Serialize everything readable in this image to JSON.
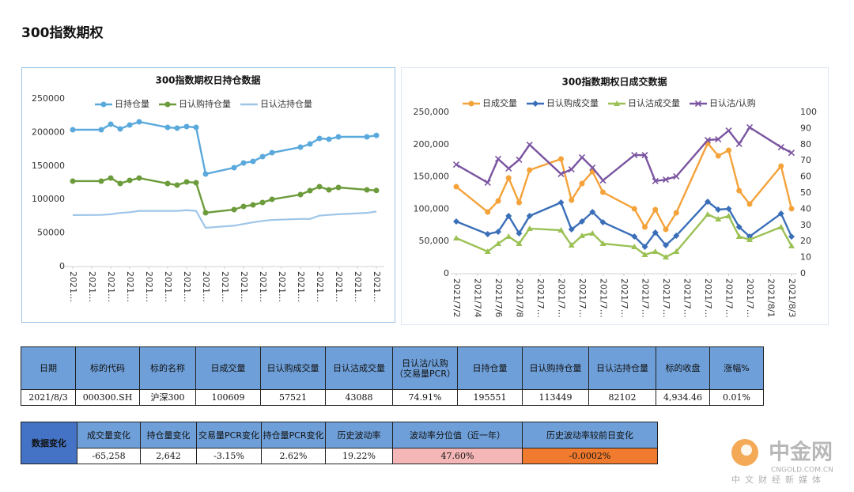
{
  "page_title": "300指数期权",
  "chart_data": [
    {
      "type": "line",
      "title": "300指数期权日持仓数据",
      "x": [
        "2021/7/2",
        "2021/7/5",
        "2021/7/6",
        "2021/7/7",
        "2021/7/8",
        "2021/7/9",
        "2021/7/12",
        "2021/7/13",
        "2021/7/14",
        "2021/7/15",
        "2021/7/16",
        "2021/7/19",
        "2021/7/20",
        "2021/7/21",
        "2021/7/22",
        "2021/7/23",
        "2021/7/26",
        "2021/7/27",
        "2021/7/28",
        "2021/7/29",
        "2021/7/30",
        "2021/8/2",
        "2021/8/3"
      ],
      "xlim": [
        "2021/7/2",
        "2021/8/3"
      ],
      "xticks": [
        {
          "value": "2021/7/2",
          "label": "2021…"
        },
        {
          "value": "2021/7/4",
          "label": "2021…"
        },
        {
          "value": "2021/7/6",
          "label": "2021…"
        },
        {
          "value": "2021/7/8",
          "label": "2021…"
        },
        {
          "value": "2021/7/10",
          "label": "2021…"
        },
        {
          "value": "2021/7/12",
          "label": "2021…"
        },
        {
          "value": "2021/7/14",
          "label": "2021…"
        },
        {
          "value": "2021/7/16",
          "label": "2021…"
        },
        {
          "value": "2021/7/18",
          "label": "2021…"
        },
        {
          "value": "2021/7/20",
          "label": "2021…"
        },
        {
          "value": "2021/7/22",
          "label": "2021…"
        },
        {
          "value": "2021/7/24",
          "label": "2021…"
        },
        {
          "value": "2021/7/26",
          "label": "2021…"
        },
        {
          "value": "2021/7/28",
          "label": "2021…"
        },
        {
          "value": "2021/7/30",
          "label": "2021…"
        },
        {
          "value": "2021/8/1",
          "label": "2021…"
        },
        {
          "value": "2021/8/3",
          "label": "2021…"
        }
      ],
      "ylim": [
        0,
        250000
      ],
      "yticks": [
        0,
        50000,
        100000,
        150000,
        200000,
        250000
      ],
      "series": [
        {
          "name": "日持仓量",
          "color": "#5aa9dc",
          "marker": "circle",
          "values": [
            204000,
            204000,
            212300,
            205200,
            211100,
            215800,
            207500,
            206400,
            208700,
            207500,
            138000,
            147400,
            154500,
            156800,
            163900,
            169800,
            178000,
            182800,
            191000,
            189900,
            193400,
            193400,
            195551
          ]
        },
        {
          "name": "日认购持仓量",
          "color": "#6b9b3a",
          "marker": "circle",
          "values": [
            127400,
            127400,
            132000,
            123800,
            128500,
            132000,
            123800,
            121500,
            126200,
            125000,
            80200,
            84900,
            89600,
            92000,
            95500,
            100200,
            107300,
            113200,
            119100,
            114400,
            117900,
            114400,
            113449
          ]
        },
        {
          "name": "日认沽持仓量",
          "color": "#9ec5e8",
          "marker": "none",
          "values": [
            76700,
            77000,
            78000,
            80000,
            81000,
            83000,
            83000,
            83000,
            84000,
            83000,
            57800,
            61000,
            63500,
            66000,
            68000,
            69500,
            71000,
            71000,
            76000,
            77000,
            78000,
            80000,
            82102
          ]
        }
      ]
    },
    {
      "type": "line",
      "title": "300指数期权日成交数据",
      "x": [
        "2021/7/2",
        "2021/7/5",
        "2021/7/6",
        "2021/7/7",
        "2021/7/8",
        "2021/7/9",
        "2021/7/12",
        "2021/7/13",
        "2021/7/14",
        "2021/7/15",
        "2021/7/16",
        "2021/7/19",
        "2021/7/20",
        "2021/7/21",
        "2021/7/22",
        "2021/7/23",
        "2021/7/26",
        "2021/7/27",
        "2021/7/28",
        "2021/7/29",
        "2021/7/30",
        "2021/8/2",
        "2021/8/3"
      ],
      "xlim": [
        "2021/7/2",
        "2021/8/3"
      ],
      "xticks": [
        {
          "value": "2021/7/2",
          "label": "2021/7/2"
        },
        {
          "value": "2021/7/4",
          "label": "2021/7/4"
        },
        {
          "value": "2021/7/6",
          "label": "2021/7/6"
        },
        {
          "value": "2021/7/8",
          "label": "2021/7/8"
        },
        {
          "value": "2021/7/10",
          "label": "2021/7…"
        },
        {
          "value": "2021/7/12",
          "label": "2021/7…"
        },
        {
          "value": "2021/7/14",
          "label": "2021/7…"
        },
        {
          "value": "2021/7/16",
          "label": "2021/7…"
        },
        {
          "value": "2021/7/18",
          "label": "2021/7…"
        },
        {
          "value": "2021/7/20",
          "label": "2021/7…"
        },
        {
          "value": "2021/7/22",
          "label": "2021/7…"
        },
        {
          "value": "2021/7/24",
          "label": "2021/7…"
        },
        {
          "value": "2021/7/26",
          "label": "2021/7…"
        },
        {
          "value": "2021/7/28",
          "label": "2021/7…"
        },
        {
          "value": "2021/7/30",
          "label": "2021/7…"
        },
        {
          "value": "2021/8/1",
          "label": "2021/8/1"
        },
        {
          "value": "2021/8/3",
          "label": "2021/8/3"
        }
      ],
      "ylim": [
        0,
        250000
      ],
      "yticks": [
        0,
        {
          "value": 50000,
          "label": "50,000"
        },
        {
          "value": 100000,
          "label": "100,000"
        },
        {
          "value": 150000,
          "label": "150,000"
        },
        {
          "value": 200000,
          "label": "200,000"
        },
        {
          "value": 250000,
          "label": "250,000"
        }
      ],
      "y2lim": [
        0,
        100
      ],
      "y2ticks": [
        0,
        10,
        20,
        30,
        40,
        50,
        60,
        70,
        80,
        90,
        100
      ],
      "series": [
        {
          "name": "日成交量",
          "color": "#f4a23a",
          "marker": "circle",
          "values": [
            134800,
            95600,
            112700,
            148300,
            110300,
            160500,
            177700,
            114000,
            139700,
            158100,
            126200,
            100500,
            72300,
            99300,
            68600,
            94400,
            202200,
            182600,
            191200,
            128700,
            107800,
            166700,
            100609
          ]
        },
        {
          "name": "日认购成交量",
          "color": "#3a6fb8",
          "marker": "diamond",
          "values": [
            80900,
            61300,
            65000,
            89500,
            62500,
            89500,
            110300,
            68600,
            80900,
            95600,
            79700,
            57600,
            41700,
            63700,
            44100,
            58800,
            111500,
            99300,
            100500,
            72300,
            57600,
            93100,
            57521
          ]
        },
        {
          "name": "日认沽成交量",
          "color": "#9bc155",
          "marker": "triangle",
          "values": [
            55100,
            34300,
            46600,
            57600,
            46600,
            69900,
            67400,
            44100,
            58800,
            62500,
            46600,
            41700,
            29400,
            34300,
            25700,
            34300,
            91900,
            84600,
            89500,
            57600,
            52700,
            72300,
            43088
          ]
        },
        {
          "name": "日认沽/认购",
          "color": "#7a54a0",
          "marker": "x",
          "axis": "y2",
          "values": [
            67.6,
            56.4,
            71.1,
            65.2,
            70.6,
            79.9,
            61.8,
            64.7,
            72.1,
            65.7,
            57.8,
            73.5,
            73.5,
            57.4,
            58.3,
            60.3,
            82.8,
            83.3,
            88.7,
            80.4,
            90.7,
            78.4,
            74.91
          ]
        }
      ]
    }
  ],
  "table": {
    "header": [
      "日期",
      "标的代码",
      "标的名称",
      "日成交量",
      "日认购成交量",
      "日认沽成交量",
      "日认沽/认购（交易量PCR）",
      "日持仓量",
      "日认购持仓量",
      "日认沽持仓量",
      "标的收盘",
      "涨幅%"
    ],
    "rows": [
      [
        "2021/8/3",
        "000300.SH",
        "沪深300",
        "100609",
        "57521",
        "43088",
        "74.91%",
        "195551",
        "113449",
        "82102",
        "4,934.46",
        "0.01%"
      ]
    ]
  },
  "change_table": {
    "row_label": "数据变化",
    "header": [
      "成交量变化",
      "持仓量变化",
      "交易量PCR变化",
      "持仓量PCR变化",
      "历史波动率",
      "波动率分位值（近一年）",
      "历史波动率较前日变化"
    ],
    "rows": [
      [
        "-65,258",
        "2,642",
        "-3.15%",
        "2.62%",
        "19.22%",
        "47.60%",
        "-0.0002%"
      ]
    ]
  },
  "watermark": {
    "name": "中金网",
    "domain": "CNGOLD.COM.CN",
    "tagline": "中文财经新媒体"
  }
}
